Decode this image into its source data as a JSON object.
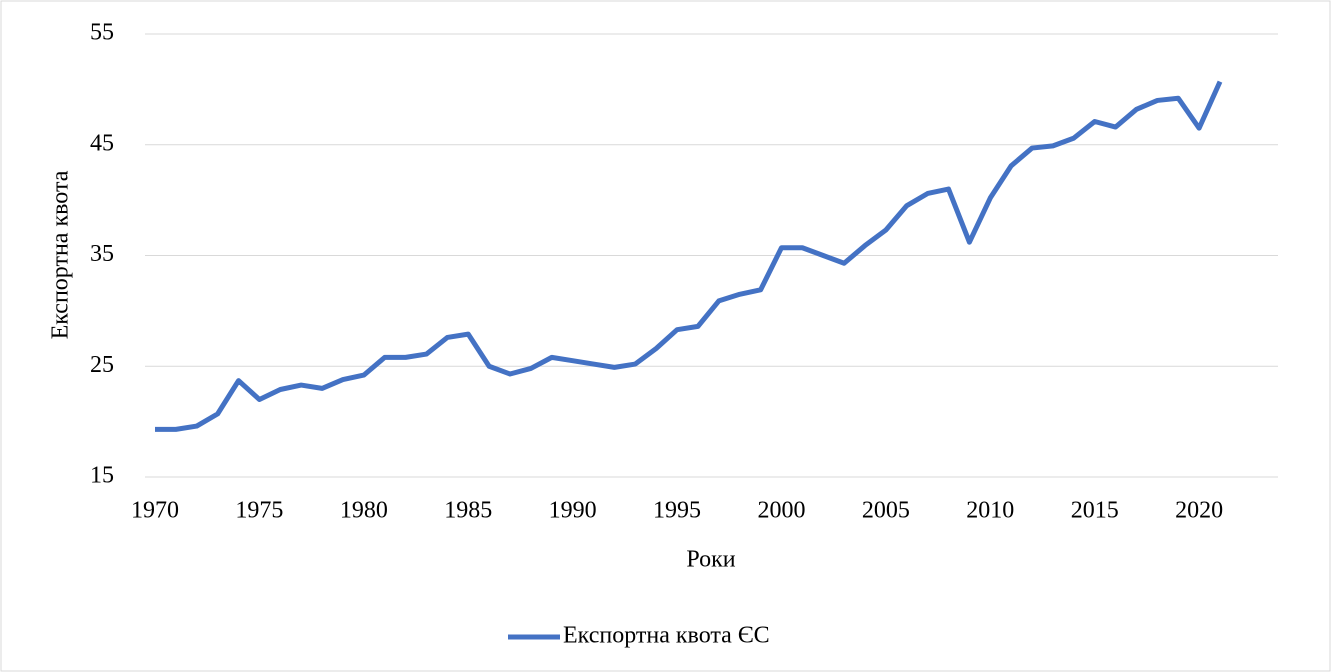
{
  "chart_data": {
    "type": "line",
    "x_label": "Роки",
    "y_label": "Експортна квота",
    "x": [
      1970,
      1971,
      1972,
      1973,
      1974,
      1975,
      1976,
      1977,
      1978,
      1979,
      1980,
      1981,
      1982,
      1983,
      1984,
      1985,
      1986,
      1987,
      1988,
      1989,
      1990,
      1991,
      1992,
      1993,
      1994,
      1995,
      1996,
      1997,
      1998,
      1999,
      2000,
      2001,
      2002,
      2003,
      2004,
      2005,
      2006,
      2007,
      2008,
      2009,
      2010,
      2011,
      2012,
      2013,
      2014,
      2015,
      2016,
      2017,
      2018,
      2019,
      2020,
      2021
    ],
    "series": [
      {
        "name": "Експортна квота ЄС",
        "color": "#4472c4",
        "values": [
          19.3,
          19.3,
          19.6,
          20.7,
          23.7,
          22.0,
          22.9,
          23.3,
          23.0,
          23.8,
          24.2,
          25.8,
          25.8,
          26.1,
          27.6,
          27.9,
          25.0,
          24.3,
          24.8,
          25.8,
          25.5,
          25.2,
          24.9,
          25.2,
          26.6,
          28.3,
          28.6,
          30.9,
          31.5,
          31.9,
          35.7,
          35.7,
          35.0,
          34.3,
          35.9,
          37.3,
          39.5,
          40.6,
          41.0,
          36.2,
          40.2,
          43.1,
          44.7,
          44.9,
          45.6,
          47.1,
          46.6,
          48.2,
          49.0,
          49.2,
          46.5,
          50.7
        ]
      }
    ],
    "xlim": [
      1970,
      2021
    ],
    "xticks": [
      1970,
      1975,
      1980,
      1985,
      1990,
      1995,
      2000,
      2005,
      2010,
      2015,
      2020
    ],
    "ylim": [
      15,
      55
    ],
    "yticks": [
      15,
      25,
      35,
      45,
      55
    ],
    "grid": true,
    "legend": "bottom"
  }
}
